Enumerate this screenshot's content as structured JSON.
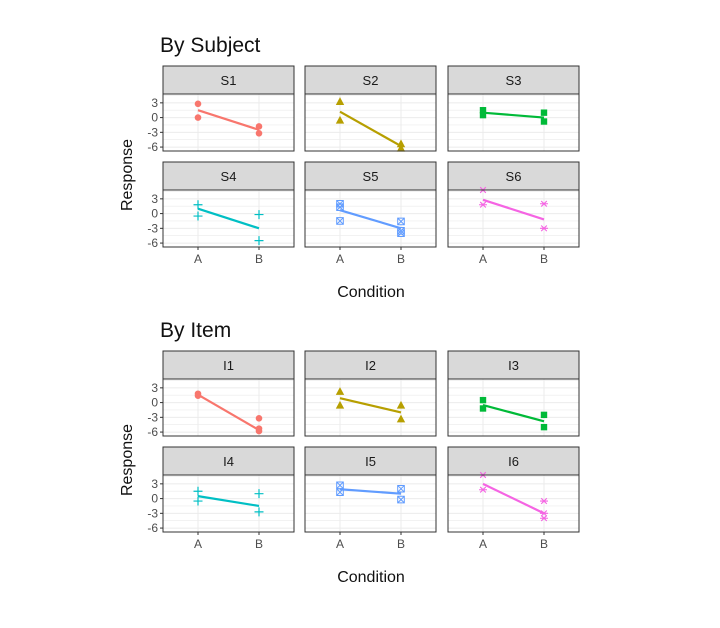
{
  "colors": {
    "panel_border": "#333333",
    "strip_fill": "#d9d9d9",
    "grid": "#ebebeb",
    "series": [
      "#f8766d",
      "#b79f00",
      "#00ba38",
      "#00bfc4",
      "#619cff",
      "#f564e3"
    ]
  },
  "chart_data": [
    {
      "type": "scatter",
      "title": "By Subject",
      "xlabel": "Condition",
      "ylabel": "Response",
      "x_categories": [
        "A",
        "B"
      ],
      "yticks": [
        3,
        0,
        -3,
        -6
      ],
      "ylim": [
        -6.8,
        4.8
      ],
      "facet_layout": "2x3",
      "facets": [
        {
          "name": "S1",
          "shape": "circle",
          "points": [
            [
              "A",
              2.8
            ],
            [
              "A",
              0
            ],
            [
              "B",
              -1.8
            ],
            [
              "B",
              -3.2
            ]
          ],
          "fit": [
            1.5,
            -2.5
          ]
        },
        {
          "name": "S2",
          "shape": "triangle",
          "points": [
            [
              "A",
              3.3
            ],
            [
              "A",
              -0.5
            ],
            [
              "B",
              -5.3
            ],
            [
              "B",
              -6.2
            ]
          ],
          "fit": [
            1.2,
            -5.8
          ]
        },
        {
          "name": "S3",
          "shape": "square",
          "points": [
            [
              "A",
              1.5
            ],
            [
              "A",
              0.5
            ],
            [
              "B",
              1.0
            ],
            [
              "B",
              -0.8
            ]
          ],
          "fit": [
            1.0,
            0.0
          ]
        },
        {
          "name": "S4",
          "shape": "plus",
          "points": [
            [
              "A",
              1.8
            ],
            [
              "A",
              -0.5
            ],
            [
              "B",
              -0.2
            ],
            [
              "B",
              -5.5
            ]
          ],
          "fit": [
            1.0,
            -3.0
          ]
        },
        {
          "name": "S5",
          "shape": "boxcross",
          "points": [
            [
              "A",
              2.0
            ],
            [
              "A",
              1.3
            ],
            [
              "A",
              -1.5
            ],
            [
              "B",
              -1.6
            ],
            [
              "B",
              -3.5
            ],
            [
              "B",
              -4.0
            ]
          ],
          "fit": [
            0.7,
            -3.0
          ]
        },
        {
          "name": "S6",
          "shape": "asterisk",
          "points": [
            [
              "A",
              4.8
            ],
            [
              "A",
              1.8
            ],
            [
              "B",
              2.0
            ],
            [
              "B",
              -3.0
            ]
          ],
          "fit": [
            2.8,
            -1.2
          ]
        }
      ]
    },
    {
      "type": "scatter",
      "title": "By Item",
      "xlabel": "Condition",
      "ylabel": "Response",
      "x_categories": [
        "A",
        "B"
      ],
      "yticks": [
        3,
        0,
        -3,
        -6
      ],
      "ylim": [
        -6.8,
        4.8
      ],
      "facet_layout": "2x3",
      "facets": [
        {
          "name": "I1",
          "shape": "circle",
          "points": [
            [
              "A",
              1.8
            ],
            [
              "A",
              1.4
            ],
            [
              "B",
              -3.2
            ],
            [
              "B",
              -5.3
            ],
            [
              "B",
              -5.8
            ]
          ],
          "fit": [
            1.6,
            -5.6
          ]
        },
        {
          "name": "I2",
          "shape": "triangle",
          "points": [
            [
              "A",
              2.3
            ],
            [
              "A",
              -0.5
            ],
            [
              "B",
              -0.5
            ],
            [
              "B",
              -3.3
            ]
          ],
          "fit": [
            0.9,
            -2.0
          ]
        },
        {
          "name": "I3",
          "shape": "square",
          "points": [
            [
              "A",
              0.5
            ],
            [
              "A",
              -1.2
            ],
            [
              "B",
              -2.5
            ],
            [
              "B",
              -5.0
            ]
          ],
          "fit": [
            -0.5,
            -3.8
          ]
        },
        {
          "name": "I4",
          "shape": "plus",
          "points": [
            [
              "A",
              1.5
            ],
            [
              "A",
              -0.5
            ],
            [
              "B",
              1.0
            ],
            [
              "B",
              -2.7
            ]
          ],
          "fit": [
            0.5,
            -1.5
          ]
        },
        {
          "name": "I5",
          "shape": "boxcross",
          "points": [
            [
              "A",
              2.7
            ],
            [
              "A",
              1.3
            ],
            [
              "B",
              2.0
            ],
            [
              "B",
              -0.2
            ]
          ],
          "fit": [
            1.9,
            1.0
          ]
        },
        {
          "name": "I6",
          "shape": "asterisk",
          "points": [
            [
              "A",
              4.8
            ],
            [
              "A",
              1.8
            ],
            [
              "B",
              -0.5
            ],
            [
              "B",
              -3.0
            ],
            [
              "B",
              -4.0
            ]
          ],
          "fit": [
            3.0,
            -3.0
          ]
        }
      ]
    }
  ]
}
